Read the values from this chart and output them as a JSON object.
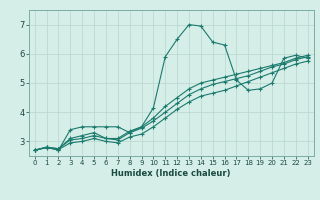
{
  "xlabel": "Humidex (Indice chaleur)",
  "ylabel": "",
  "background_color": "#d6eee8",
  "grid_color": "#b8d5ce",
  "line_color": "#1a7a6e",
  "x_ticks": [
    0,
    1,
    2,
    3,
    4,
    5,
    6,
    7,
    8,
    9,
    10,
    11,
    12,
    13,
    14,
    15,
    16,
    17,
    18,
    19,
    20,
    21,
    22,
    23
  ],
  "y_ticks": [
    3,
    4,
    5,
    6,
    7
  ],
  "ylim": [
    2.5,
    7.5
  ],
  "xlim": [
    -0.5,
    23.5
  ],
  "line1_y": [
    2.7,
    2.8,
    2.7,
    3.4,
    3.5,
    3.5,
    3.5,
    3.5,
    3.3,
    3.5,
    4.15,
    5.9,
    6.5,
    7.0,
    6.95,
    6.4,
    6.3,
    5.1,
    4.75,
    4.8,
    5.0,
    5.85,
    5.95,
    5.85
  ],
  "line2_y": [
    2.7,
    2.8,
    2.75,
    3.1,
    3.2,
    3.3,
    3.1,
    3.1,
    3.35,
    3.5,
    3.8,
    4.2,
    4.5,
    4.8,
    5.0,
    5.1,
    5.2,
    5.3,
    5.4,
    5.5,
    5.6,
    5.7,
    5.85,
    5.95
  ],
  "line3_y": [
    2.7,
    2.8,
    2.75,
    3.05,
    3.1,
    3.2,
    3.1,
    3.05,
    3.3,
    3.45,
    3.7,
    4.0,
    4.3,
    4.6,
    4.8,
    4.95,
    5.05,
    5.15,
    5.25,
    5.4,
    5.55,
    5.65,
    5.8,
    5.9
  ],
  "line4_y": [
    2.7,
    2.78,
    2.72,
    2.95,
    3.0,
    3.1,
    3.0,
    2.95,
    3.15,
    3.25,
    3.5,
    3.8,
    4.1,
    4.35,
    4.55,
    4.65,
    4.75,
    4.9,
    5.05,
    5.2,
    5.35,
    5.5,
    5.65,
    5.75
  ],
  "tick_fontsize": 5.0,
  "xlabel_fontsize": 6.0
}
